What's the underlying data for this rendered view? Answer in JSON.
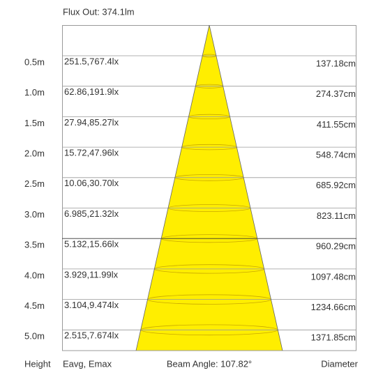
{
  "header": {
    "title": "Flux Out: 374.1lm"
  },
  "rows": [
    {
      "height": "0.5m",
      "lux": "251.5,767.4lx",
      "diameter": "137.18cm"
    },
    {
      "height": "1.0m",
      "lux": "62.86,191.9lx",
      "diameter": "274.37cm"
    },
    {
      "height": "1.5m",
      "lux": "27.94,85.27lx",
      "diameter": "411.55cm"
    },
    {
      "height": "2.0m",
      "lux": "15.72,47.96lx",
      "diameter": "548.74cm"
    },
    {
      "height": "2.5m",
      "lux": "10.06,30.70lx",
      "diameter": "685.92cm"
    },
    {
      "height": "3.0m",
      "lux": "6.985,21.32lx",
      "diameter": "823.11cm"
    },
    {
      "height": "3.5m",
      "lux": "5.132,15.66lx",
      "diameter": "960.29cm"
    },
    {
      "height": "4.0m",
      "lux": "3.929,11.99lx",
      "diameter": "1097.48cm"
    },
    {
      "height": "4.5m",
      "lux": "3.104,9.474lx",
      "diameter": "1234.66cm"
    },
    {
      "height": "5.0m",
      "lux": "2.515,7.674lx",
      "diameter": "1371.85cm"
    }
  ],
  "footer": {
    "height": "Height",
    "lux": "Eavg, Emax",
    "beam_angle": "Beam Angle: 107.82°",
    "diameter": "Diameter"
  }
}
